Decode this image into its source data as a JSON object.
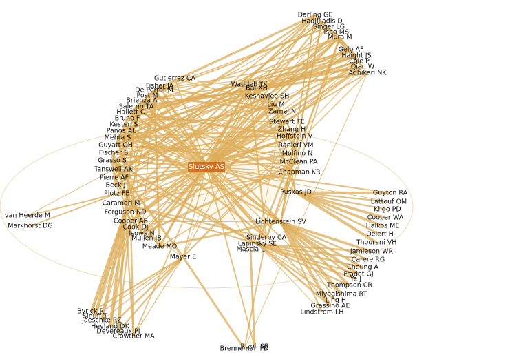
{
  "nodes": [
    {
      "label": "Slutsky AS"
    },
    {
      "label": "Darling GE"
    },
    {
      "label": "Hadjiliadis D"
    },
    {
      "label": "Singer LG"
    },
    {
      "label": "Tsao MS"
    },
    {
      "label": "Mura M"
    },
    {
      "label": "Gelb AF"
    },
    {
      "label": "Haight JS"
    },
    {
      "label": "Cole P"
    },
    {
      "label": "Qian W"
    },
    {
      "label": "Adhikari NK"
    },
    {
      "label": "Gutierrez CA"
    },
    {
      "label": "Fisher JA"
    },
    {
      "label": "De Perrot M"
    },
    {
      "label": "Post M"
    },
    {
      "label": "Brienza A"
    },
    {
      "label": "Salerno TA"
    },
    {
      "label": "Hallett C"
    },
    {
      "label": "Bruno F"
    },
    {
      "label": "Kesten S"
    },
    {
      "label": "Panos AL"
    },
    {
      "label": "Mehta S"
    },
    {
      "label": "Guyatt GH"
    },
    {
      "label": "Fischer S"
    },
    {
      "label": "Grasso S"
    },
    {
      "label": "Tanswell AK"
    },
    {
      "label": "Pierre AF"
    },
    {
      "label": "Beck J"
    },
    {
      "label": "Plotz FB"
    },
    {
      "label": "Caramori M"
    },
    {
      "label": "Ferguson ND"
    },
    {
      "label": "Cooper AB"
    },
    {
      "label": "Cook DJ"
    },
    {
      "label": "Isowa N"
    },
    {
      "label": "Mullen JB"
    },
    {
      "label": "Meade MO"
    },
    {
      "label": "Mayer E"
    },
    {
      "label": "Waddell TK"
    },
    {
      "label": "Bai XH"
    },
    {
      "label": "Keshavjee SH"
    },
    {
      "label": "Liu M"
    },
    {
      "label": "Zamel N"
    },
    {
      "label": "Stewart TE"
    },
    {
      "label": "Zhang H"
    },
    {
      "label": "Hoffstein V"
    },
    {
      "label": "Ranieri VM"
    },
    {
      "label": "Molfino N"
    },
    {
      "label": "McClean PA"
    },
    {
      "label": "Chapman KR"
    },
    {
      "label": "Puskas JD"
    },
    {
      "label": "Lichtenstein SV"
    },
    {
      "label": "Sinderby CA"
    },
    {
      "label": "Lapinsky SE"
    },
    {
      "label": "Mascia L"
    },
    {
      "label": "Guyton RA"
    },
    {
      "label": "Lattouf OM"
    },
    {
      "label": "Kilgo PD"
    },
    {
      "label": "Cooper WA"
    },
    {
      "label": "Halkos ME"
    },
    {
      "label": "Oelert H"
    },
    {
      "label": "Thourani VH"
    },
    {
      "label": "Jamieson WR"
    },
    {
      "label": "Carere RG"
    },
    {
      "label": "Cheung A"
    },
    {
      "label": "Fradet GJ"
    },
    {
      "label": "Ye J"
    },
    {
      "label": "Thompson CR"
    },
    {
      "label": "Miyagishima RT"
    },
    {
      "label": "Ling H"
    },
    {
      "label": "Grassino AE"
    },
    {
      "label": "Lindstrom LH"
    },
    {
      "label": "van Heerde M"
    },
    {
      "label": "Markhorst DG"
    },
    {
      "label": "Byrick RJ"
    },
    {
      "label": "Sinuff T"
    },
    {
      "label": "Jaeschke RZ"
    },
    {
      "label": "Heyland DK"
    },
    {
      "label": "Devereaux PJ"
    },
    {
      "label": "Crowther MA"
    },
    {
      "label": "Brenneman FD"
    },
    {
      "label": "Rizoli SB"
    }
  ]
}
